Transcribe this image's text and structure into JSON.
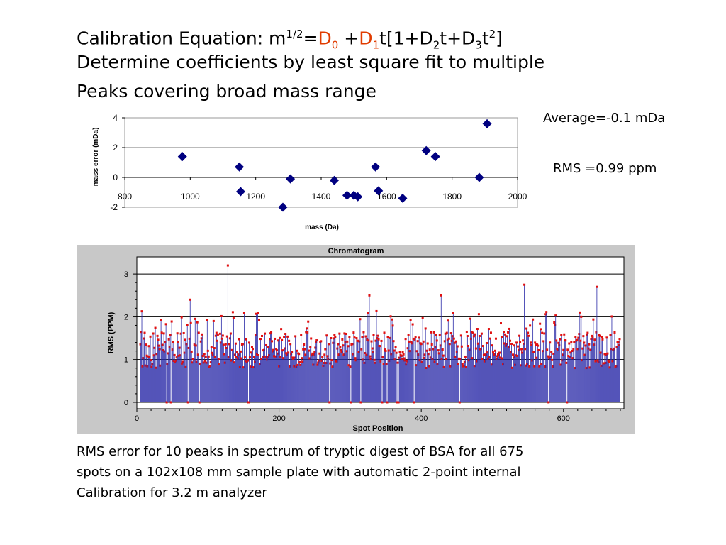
{
  "slide": {
    "heading": {
      "line1": {
        "prefix": "Calibration Equation:  m",
        "exp": "1/2",
        "eq": "=",
        "d0": "D",
        "d0_sub": "0",
        "plus": " +",
        "d1": "D",
        "d1_sub": "1",
        "t_open": "t[1+D",
        "d2_sub": "2",
        "t_plus": "t+D",
        "d3_sub": "3",
        "t_end": "t",
        "t_exp": "2",
        "close": "]"
      },
      "line2": "Determine coefficients by least square fit to multiple",
      "line3": "Peaks covering  broad mass range"
    },
    "stats": {
      "average": "Average=-0.1 mDa",
      "rms": "RMS =0.99 ppm"
    },
    "caption": [
      "RMS error for 10 peaks in spectrum of tryptic digest of BSA for all 675",
      "spots on a 102x108 mm sample plate with automatic 2-point internal",
      "Calibration for 3.2 m analyzer"
    ]
  },
  "colors": {
    "accent": "#e03c00",
    "marker": "#000080",
    "bar": "#2b2ba8",
    "bar_tip": "#e01010",
    "plot_frame": "#c8c8c8"
  },
  "chart_data": [
    {
      "type": "scatter",
      "title": "",
      "xlabel": "mass (Da)",
      "ylabel": "mass error (mDa)",
      "xlim": [
        800,
        2000
      ],
      "ylim": [
        -2,
        4
      ],
      "xticks": [
        "800",
        "1000",
        "1200",
        "1400",
        "1600",
        "1800",
        "2000"
      ],
      "yticks": [
        "-2",
        "0",
        "2",
        "4"
      ],
      "grid": true,
      "marker": "diamond",
      "x": [
        976,
        1150,
        1154,
        1283,
        1306,
        1440,
        1479,
        1500,
        1512,
        1566,
        1575,
        1649,
        1721,
        1749,
        1883,
        1907
      ],
      "y": [
        1.4,
        0.7,
        -0.95,
        -2.0,
        -0.1,
        -0.2,
        -1.2,
        -1.2,
        -1.3,
        0.7,
        -0.9,
        -1.4,
        1.8,
        1.4,
        0.0,
        3.6
      ]
    },
    {
      "type": "bar",
      "title": "Chromatogram",
      "xlabel": "Spot Position",
      "ylabel": "RMS (PPM)",
      "xlim": [
        0,
        685
      ],
      "ylim": [
        -0.15,
        3.4
      ],
      "xticks": [
        "0",
        "200",
        "400",
        "600"
      ],
      "yticks": [
        "0",
        "1",
        "2",
        "3"
      ],
      "reference_lines": [
        1,
        2,
        3
      ],
      "n_spots": 675,
      "spot_start": 5,
      "value_range": [
        0.0,
        3.2
      ],
      "highlights": [
        {
          "x": 128,
          "y": 3.2
        },
        {
          "x": 75,
          "y": 2.4
        },
        {
          "x": 545,
          "y": 2.75
        },
        {
          "x": 647,
          "y": 2.7
        },
        {
          "x": 327,
          "y": 2.5
        },
        {
          "x": 428,
          "y": 2.5
        }
      ]
    }
  ]
}
